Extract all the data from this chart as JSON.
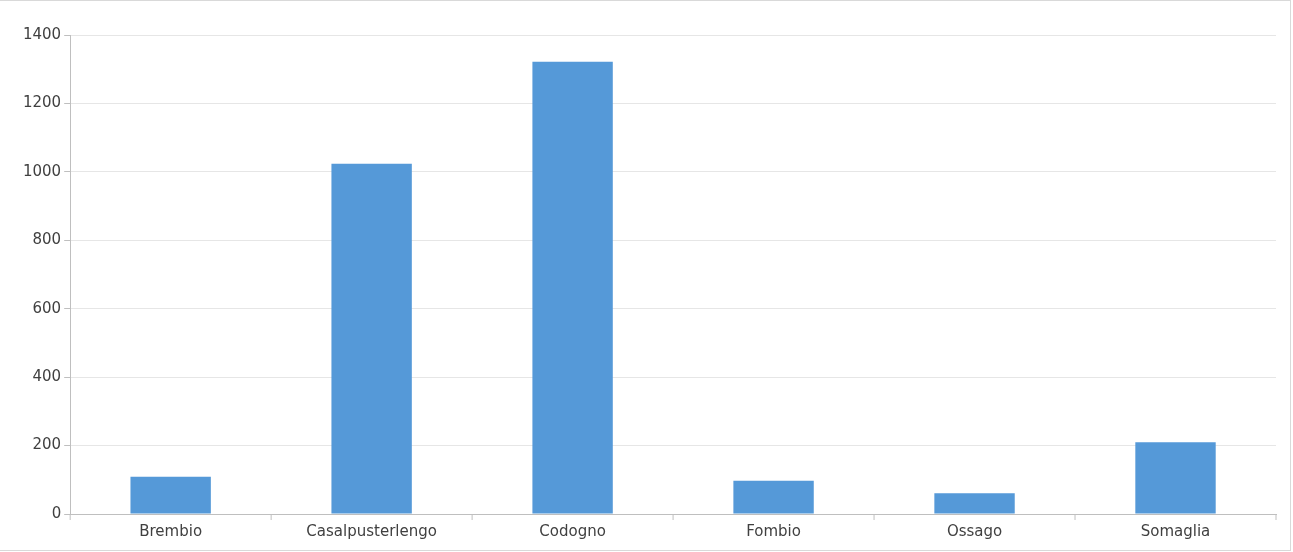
{
  "chart_data": {
    "type": "bar",
    "categories": [
      "Brembio",
      "Casalpusterlengo",
      "Codogno",
      "Fombio",
      "Ossago",
      "Somaglia"
    ],
    "values": [
      109,
      1024,
      1322,
      97,
      61,
      210
    ],
    "color": "#5599d8",
    "ylim": [
      0,
      1400
    ],
    "yticks": [
      0,
      200,
      400,
      600,
      800,
      1000,
      1200,
      1400
    ],
    "grid": "y",
    "legend": false
  }
}
